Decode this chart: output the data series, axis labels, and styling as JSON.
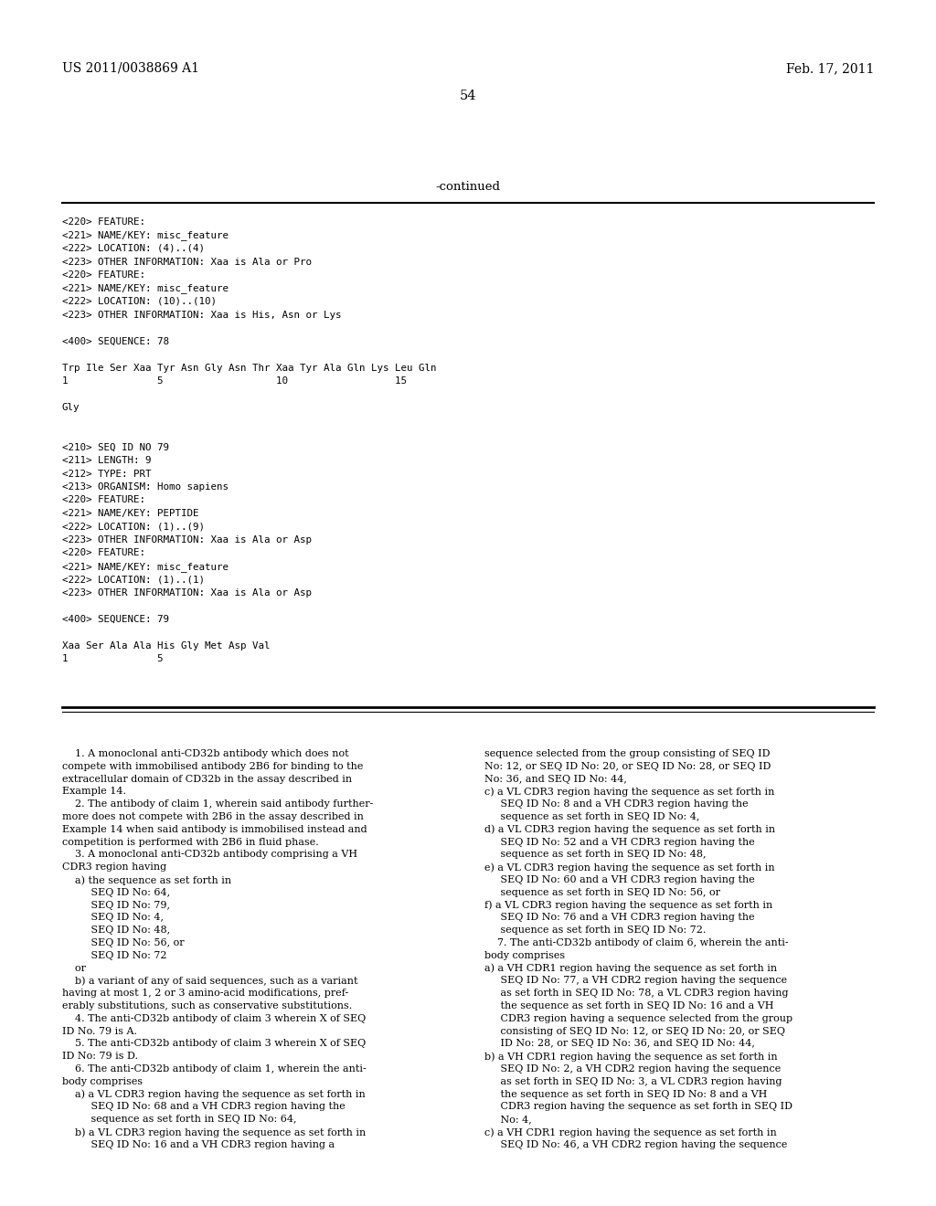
{
  "background_color": "#ffffff",
  "header_left": "US 2011/0038869 A1",
  "header_right": "Feb. 17, 2011",
  "page_number": "54",
  "continued_label": "-continued",
  "top_section_lines": [
    "<220> FEATURE:",
    "<221> NAME/KEY: misc_feature",
    "<222> LOCATION: (4)..(4)",
    "<223> OTHER INFORMATION: Xaa is Ala or Pro",
    "<220> FEATURE:",
    "<221> NAME/KEY: misc_feature",
    "<222> LOCATION: (10)..(10)",
    "<223> OTHER INFORMATION: Xaa is His, Asn or Lys",
    "",
    "<400> SEQUENCE: 78",
    "",
    "Trp Ile Ser Xaa Tyr Asn Gly Asn Thr Xaa Tyr Ala Gln Lys Leu Gln",
    "1               5                   10                  15",
    "",
    "Gly",
    "",
    "",
    "<210> SEQ ID NO 79",
    "<211> LENGTH: 9",
    "<212> TYPE: PRT",
    "<213> ORGANISM: Homo sapiens",
    "<220> FEATURE:",
    "<221> NAME/KEY: PEPTIDE",
    "<222> LOCATION: (1)..(9)",
    "<223> OTHER INFORMATION: Xaa is Ala or Asp",
    "<220> FEATURE:",
    "<221> NAME/KEY: misc_feature",
    "<222> LOCATION: (1)..(1)",
    "<223> OTHER INFORMATION: Xaa is Ala or Asp",
    "",
    "<400> SEQUENCE: 79",
    "",
    "Xaa Ser Ala Ala His Gly Met Asp Val",
    "1               5"
  ],
  "claims_left": [
    "    1. A monoclonal anti-CD32b antibody which does not",
    "compete with immobilised antibody 2B6 for binding to the",
    "extracellular domain of CD32b in the assay described in",
    "Example 14.",
    "    2. The antibody of claim 1, wherein said antibody further-",
    "more does not compete with 2B6 in the assay described in",
    "Example 14 when said antibody is immobilised instead and",
    "competition is performed with 2B6 in fluid phase.",
    "    3. A monoclonal anti-CD32b antibody comprising a VH",
    "CDR3 region having",
    "    a) the sequence as set forth in",
    "         SEQ ID No: 64,",
    "         SEQ ID No: 79,",
    "         SEQ ID No: 4,",
    "         SEQ ID No: 48,",
    "         SEQ ID No: 56, or",
    "         SEQ ID No: 72",
    "    or",
    "    b) a variant of any of said sequences, such as a variant",
    "having at most 1, 2 or 3 amino-acid modifications, pref-",
    "erably substitutions, such as conservative substitutions.",
    "    4. The anti-CD32b antibody of claim 3 wherein X of SEQ",
    "ID No. 79 is A.",
    "    5. The anti-CD32b antibody of claim 3 wherein X of SEQ",
    "ID No: 79 is D.",
    "    6. The anti-CD32b antibody of claim 1, wherein the anti-",
    "body comprises",
    "    a) a VL CDR3 region having the sequence as set forth in",
    "         SEQ ID No: 68 and a VH CDR3 region having the",
    "         sequence as set forth in SEQ ID No: 64,",
    "    b) a VL CDR3 region having the sequence as set forth in",
    "         SEQ ID No: 16 and a VH CDR3 region having a"
  ],
  "claims_right": [
    "sequence selected from the group consisting of SEQ ID",
    "No: 12, or SEQ ID No: 20, or SEQ ID No: 28, or SEQ ID",
    "No: 36, and SEQ ID No: 44,",
    "c) a VL CDR3 region having the sequence as set forth in",
    "     SEQ ID No: 8 and a VH CDR3 region having the",
    "     sequence as set forth in SEQ ID No: 4,",
    "d) a VL CDR3 region having the sequence as set forth in",
    "     SEQ ID No: 52 and a VH CDR3 region having the",
    "     sequence as set forth in SEQ ID No: 48,",
    "e) a VL CDR3 region having the sequence as set forth in",
    "     SEQ ID No: 60 and a VH CDR3 region having the",
    "     sequence as set forth in SEQ ID No: 56, or",
    "f) a VL CDR3 region having the sequence as set forth in",
    "     SEQ ID No: 76 and a VH CDR3 region having the",
    "     sequence as set forth in SEQ ID No: 72.",
    "    7. The anti-CD32b antibody of claim 6, wherein the anti-",
    "body comprises",
    "a) a VH CDR1 region having the sequence as set forth in",
    "     SEQ ID No: 77, a VH CDR2 region having the sequence",
    "     as set forth in SEQ ID No: 78, a VL CDR3 region having",
    "     the sequence as set forth in SEQ ID No: 16 and a VH",
    "     CDR3 region having a sequence selected from the group",
    "     consisting of SEQ ID No: 12, or SEQ ID No: 20, or SEQ",
    "     ID No: 28, or SEQ ID No: 36, and SEQ ID No: 44,",
    "b) a VH CDR1 region having the sequence as set forth in",
    "     SEQ ID No: 2, a VH CDR2 region having the sequence",
    "     as set forth in SEQ ID No: 3, a VL CDR3 region having",
    "     the sequence as set forth in SEQ ID No: 8 and a VH",
    "     CDR3 region having the sequence as set forth in SEQ ID",
    "     No: 4,",
    "c) a VH CDR1 region having the sequence as set forth in",
    "     SEQ ID No: 46, a VH CDR2 region having the sequence"
  ]
}
